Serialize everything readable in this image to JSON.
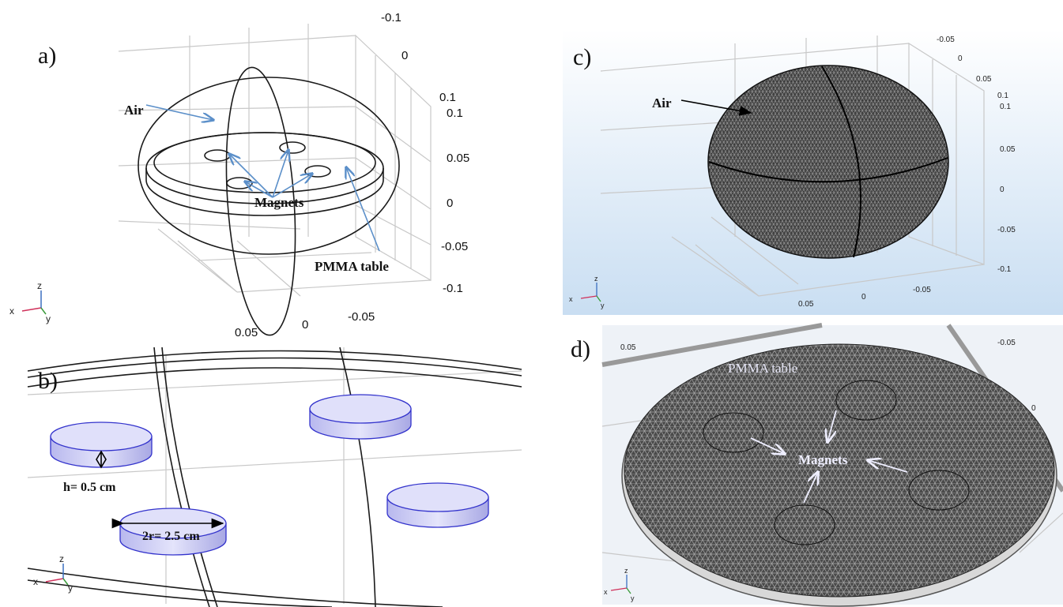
{
  "panels": [
    {
      "label": "a)",
      "annotations": [
        "Air",
        "Magnets",
        "PMMA table"
      ],
      "ticks": [
        "-0.1",
        "0",
        "0.1",
        "0.1",
        "0.05",
        "0",
        "-0.05",
        "-0.1",
        "0.05",
        "0",
        "-0.05"
      ],
      "triad": [
        "x",
        "y",
        "z"
      ]
    },
    {
      "label": "b)",
      "annotations": [
        "h= 0.5 cm",
        "2r= 2.5 cm"
      ],
      "triad": [
        "x",
        "y",
        "z"
      ]
    },
    {
      "label": "c)",
      "annotations": [
        "Air"
      ],
      "ticks": [
        "-0.05",
        "0",
        "0.05",
        "0.1",
        "0.1",
        "0.05",
        "0",
        "-0.05",
        "-0.1",
        "0.05",
        "0",
        "-0.05"
      ],
      "triad": [
        "x",
        "y",
        "z"
      ]
    },
    {
      "label": "d)",
      "annotations": [
        "PMMA table",
        "Magnets"
      ],
      "ticks": [
        "0.05",
        "-0.05",
        "0"
      ],
      "triad": [
        "x",
        "y",
        "z"
      ]
    }
  ]
}
